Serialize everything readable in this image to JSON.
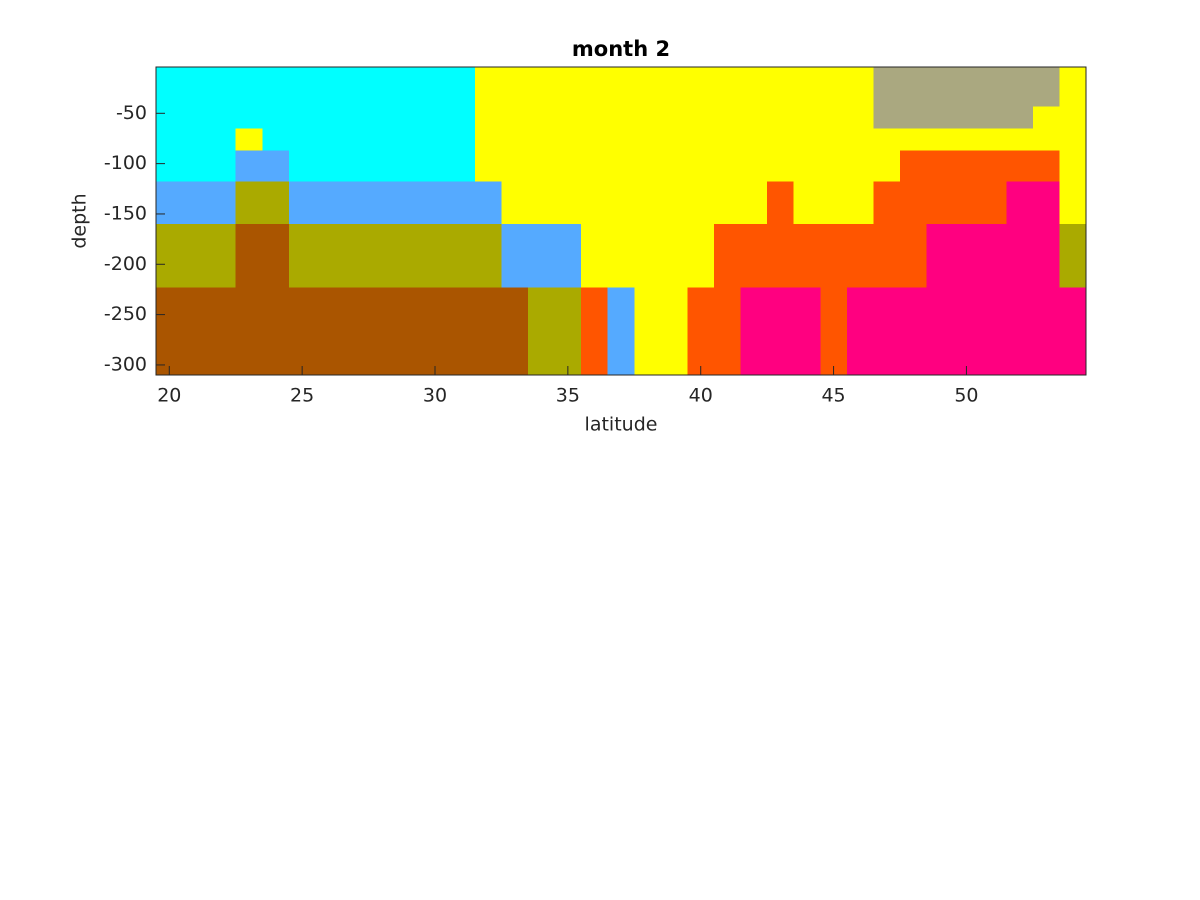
{
  "chart_data": {
    "type": "heatmap",
    "title": "month 2",
    "x_label": "latitude",
    "y_label": "depth",
    "x": [
      20,
      21,
      22,
      23,
      24,
      25,
      26,
      27,
      28,
      29,
      30,
      31,
      32,
      33,
      34,
      35,
      36,
      37,
      38,
      39,
      40,
      41,
      42,
      43,
      44,
      45,
      46,
      47,
      48,
      49,
      50,
      51,
      52,
      53,
      54
    ],
    "y_edges": [
      -4,
      -43,
      -65,
      -87,
      -118,
      -160,
      -223,
      -310
    ],
    "colormap": [
      "#aa5500",
      "#aaaa00",
      "#55aaff",
      "#00ffff",
      "#ffff00",
      "#aaa880",
      "#ff5500",
      "#ff0080"
    ],
    "z": [
      [
        4,
        4,
        4,
        4,
        4,
        4,
        4,
        4,
        4,
        4,
        4,
        4,
        5,
        5,
        5,
        5,
        5,
        5,
        5,
        5,
        5,
        5,
        5,
        5,
        5,
        5,
        5,
        6,
        6,
        6,
        6,
        6,
        6,
        6,
        5
      ],
      [
        4,
        4,
        4,
        4,
        4,
        4,
        4,
        4,
        4,
        4,
        4,
        4,
        5,
        5,
        5,
        5,
        5,
        5,
        5,
        5,
        5,
        5,
        5,
        5,
        5,
        5,
        5,
        6,
        6,
        6,
        6,
        6,
        6,
        5,
        5
      ],
      [
        4,
        4,
        4,
        5,
        4,
        4,
        4,
        4,
        4,
        4,
        4,
        4,
        5,
        5,
        5,
        5,
        5,
        5,
        5,
        5,
        5,
        5,
        5,
        5,
        5,
        5,
        5,
        5,
        5,
        5,
        5,
        5,
        5,
        5,
        5
      ],
      [
        4,
        4,
        4,
        3,
        3,
        4,
        4,
        4,
        4,
        4,
        4,
        4,
        5,
        5,
        5,
        5,
        5,
        5,
        5,
        5,
        5,
        5,
        5,
        5,
        5,
        5,
        5,
        5,
        7,
        7,
        7,
        7,
        7,
        7,
        5
      ],
      [
        3,
        3,
        3,
        2,
        2,
        3,
        3,
        3,
        3,
        3,
        3,
        3,
        3,
        5,
        5,
        5,
        5,
        5,
        5,
        5,
        5,
        5,
        5,
        7,
        5,
        5,
        5,
        7,
        7,
        7,
        7,
        7,
        8,
        8,
        5
      ],
      [
        2,
        2,
        2,
        1,
        1,
        2,
        2,
        2,
        2,
        2,
        2,
        2,
        2,
        3,
        3,
        3,
        5,
        5,
        5,
        5,
        5,
        7,
        7,
        7,
        7,
        7,
        7,
        7,
        7,
        8,
        8,
        8,
        8,
        8,
        2
      ],
      [
        1,
        1,
        1,
        1,
        1,
        1,
        1,
        1,
        1,
        1,
        1,
        1,
        1,
        1,
        2,
        2,
        7,
        3,
        5,
        5,
        7,
        7,
        8,
        8,
        8,
        7,
        8,
        8,
        8,
        8,
        8,
        8,
        8,
        8,
        8
      ]
    ],
    "xlim": [
      19.5,
      54.5
    ],
    "ylim": [
      -310,
      -4
    ],
    "xticks": [
      20,
      25,
      30,
      35,
      40,
      45,
      50
    ],
    "yticks": [
      -300,
      -250,
      -200,
      -150,
      -100,
      -50
    ]
  }
}
